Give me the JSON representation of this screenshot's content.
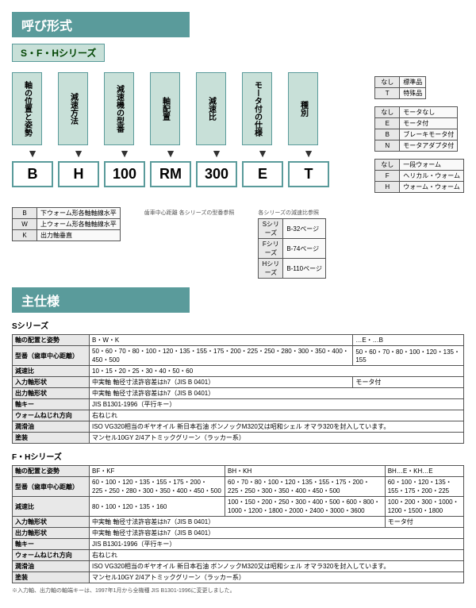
{
  "colors": {
    "teal": "#5a9b9b",
    "mint": "#c8e0d8",
    "bg": "#ffffff",
    "border": "#555555",
    "gray": "#e8e8e8"
  },
  "typography": {
    "body_pt": 10,
    "title_pt": 16,
    "code_pt": 18,
    "table_pt": 8
  },
  "titles": {
    "yobikeishiki": "呼び形式",
    "shiyou": "主仕様",
    "series_sfh": "S・F・Hシリーズ",
    "s_series": "Sシリーズ",
    "fh_series": "F・Hシリーズ"
  },
  "columns": [
    {
      "head": "軸の位置と姿勢",
      "code": "B"
    },
    {
      "head": "減速方法",
      "code": "H"
    },
    {
      "head": "減速機の型番",
      "code": "100"
    },
    {
      "head": "軸配置",
      "code": "RM"
    },
    {
      "head": "減速比",
      "code": "300"
    },
    {
      "head": "モータ付の仕様",
      "code": "E"
    },
    {
      "head": "種別",
      "code": "T"
    }
  ],
  "species": {
    "title": "種別",
    "rows": [
      [
        "なし",
        "標準品"
      ],
      [
        "T",
        "特殊品"
      ]
    ]
  },
  "motor": {
    "title": "モータ付",
    "rows": [
      [
        "なし",
        "モータなし"
      ],
      [
        "E",
        "モータ付"
      ],
      [
        "B",
        "ブレーキモータ付"
      ],
      [
        "N",
        "モータアダプタ付"
      ]
    ]
  },
  "redux": {
    "title": "減速方法",
    "rows": [
      [
        "なし",
        "一段ウォーム"
      ],
      [
        "F",
        "ヘリカル・ウォーム"
      ],
      [
        "H",
        "ウォーム・ウォーム"
      ]
    ]
  },
  "ratio_note": {
    "title": "各シリーズの減速比参照",
    "rows": [
      [
        "Sシリーズ",
        "B-32ページ"
      ],
      [
        "Fシリーズ",
        "B-74ページ"
      ],
      [
        "Hシリーズ",
        "B-110ページ"
      ]
    ]
  },
  "pos": {
    "rows": [
      [
        "B",
        "下ウォーム形各軸軸線水平"
      ],
      [
        "W",
        "上ウォーム形各軸軸線水平"
      ],
      [
        "K",
        "出力軸垂直"
      ]
    ]
  },
  "type_note": "歯車中心距離 各シリーズの型番参照",
  "s_spec": {
    "rows": [
      [
        "軸の配置と姿勢",
        "B・W・K",
        "",
        "…E・…B"
      ],
      [
        "型番（歯車中心距離）",
        "50・60・70・80・100・120・135・155・175・200・225・250・280・300・350・400・450・500",
        "",
        "50・60・70・80・100・120・135・155"
      ],
      [
        "減速比",
        "10・15・20・25・30・40・50・60",
        "",
        ""
      ],
      [
        "入力軸形状",
        "中実軸 軸径寸法許容差はh7（JIS B 0401）",
        "",
        "モータ付"
      ],
      [
        "出力軸形状",
        "中実軸 軸径寸法許容差はh7（JIS B 0401）",
        "",
        ""
      ],
      [
        "軸キー",
        "JIS B1301-1996（平行キー）",
        "",
        ""
      ],
      [
        "ウォームねじれ方向",
        "右ねじれ",
        "",
        ""
      ],
      [
        "潤滑油",
        "ISO VG320相当のギヤオイル 新日本石油 ボンノックM320又は昭和シェル オマラ320を封入しています。",
        "",
        ""
      ],
      [
        "塗装",
        "マンセル10GY 2/4アトミックグリーン（ラッカー系）",
        "",
        ""
      ]
    ]
  },
  "fh_spec": {
    "rows": [
      [
        "軸の配置と姿勢",
        "BF・KF",
        "BH・KH",
        "BH…E・KH…E"
      ],
      [
        "型番（歯車中心距離）",
        "60・100・120・135・155・175・200・225・250・280・300・350・400・450・500",
        "60・70・80・100・120・135・155・175・200・225・250・300・350・400・450・500",
        "60・100・120・135・155・175・200・225"
      ],
      [
        "減速比",
        "80・100・120・135・160",
        "100・150・200・250・300・400・500・600・800・1000・1200・1800・2000・2400・3000・3600",
        "100・200・300・1000・1200・1500・1800"
      ],
      [
        "入力軸形状",
        "中実軸 軸径寸法許容差はh7（JIS B 0401）",
        "",
        "モータ付"
      ],
      [
        "出力軸形状",
        "中実軸 軸径寸法許容差はh7（JIS B 0401）",
        "",
        ""
      ],
      [
        "軸キー",
        "JIS B1301-1996（平行キー）",
        "",
        ""
      ],
      [
        "ウォームねじれ方向",
        "右ねじれ",
        "",
        ""
      ],
      [
        "潤滑油",
        "ISO VG320相当のギヤオイル 新日本石油 ボンノックM320又は昭和シェル オマラ320を封入しています。",
        "",
        ""
      ],
      [
        "塗装",
        "マンセル10GY 2/4アトミックグリーン（ラッカー系）",
        "",
        ""
      ]
    ]
  },
  "footnote": "※入力軸、出力軸の軸端キーは、1997年1月から全機種 JIS B1301-1996に変更しました。"
}
